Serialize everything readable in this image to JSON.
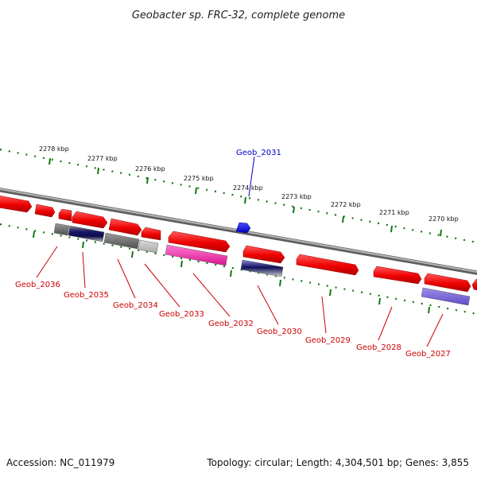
{
  "title": "Geobacter sp. FRC-32, complete genome",
  "footer": {
    "accession": "Accession: NC_011979",
    "summary": "Topology: circular; Length: 4,304,501 bp; Genes: 3,855"
  },
  "colors": {
    "forward_gene": "#ff0000",
    "backbone": "#888888",
    "tick_green": "#117711",
    "label_red": "#cc0000",
    "label_blue": "#0000cc"
  },
  "scale_labels": [
    "2278 kbp",
    "2277 kbp",
    "2276 kbp",
    "2275 kbp",
    "2274 kbp",
    "2273 kbp",
    "2272 kbp",
    "2271 kbp",
    "2270 kbp"
  ],
  "gene_labels": {
    "top": "Geob_2031",
    "bottom": [
      "Geob_2036",
      "Geob_2035",
      "Geob_2034",
      "Geob_2033",
      "Geob_2032",
      "Geob_2030",
      "Geob_2029",
      "Geob_2028",
      "Geob_2027"
    ]
  }
}
